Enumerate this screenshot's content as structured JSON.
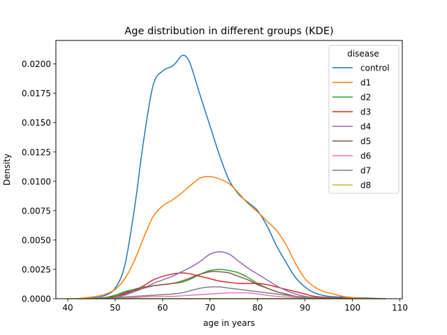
{
  "chart_data": {
    "type": "line",
    "title": "Age distribution in different groups (KDE)",
    "xlabel": "age in years",
    "ylabel": "Density",
    "xlim": [
      37.5,
      110.5
    ],
    "ylim": [
      0,
      0.022
    ],
    "x_ticks": [
      40,
      50,
      60,
      70,
      80,
      90,
      100,
      110
    ],
    "x_tick_labels": [
      "40",
      "50",
      "60",
      "70",
      "80",
      "90",
      "100",
      "110"
    ],
    "y_ticks": [
      0,
      0.0025,
      0.005,
      0.0075,
      0.01,
      0.0125,
      0.015,
      0.0175,
      0.02
    ],
    "y_tick_labels": [
      "0.0000",
      "0.0025",
      "0.0050",
      "0.0075",
      "0.0100",
      "0.0125",
      "0.0150",
      "0.0175",
      "0.0200"
    ],
    "grid": false,
    "legend": {
      "title": "disease",
      "placement": "top-right"
    },
    "series": [
      {
        "name": "control",
        "color": "#1f77b4",
        "points": [
          [
            44,
            0
          ],
          [
            46,
            0.0001
          ],
          [
            48,
            0.0003
          ],
          [
            50,
            0.0009
          ],
          [
            52,
            0.0028
          ],
          [
            54,
            0.0075
          ],
          [
            56,
            0.0135
          ],
          [
            58,
            0.0182
          ],
          [
            60,
            0.0194
          ],
          [
            62,
            0.0198
          ],
          [
            63,
            0.0202
          ],
          [
            64,
            0.0207
          ],
          [
            65,
            0.0206
          ],
          [
            66,
            0.0198
          ],
          [
            68,
            0.0172
          ],
          [
            70,
            0.0147
          ],
          [
            72,
            0.0122
          ],
          [
            74,
            0.0101
          ],
          [
            76,
            0.0089
          ],
          [
            78,
            0.0082
          ],
          [
            80,
            0.0075
          ],
          [
            82,
            0.0062
          ],
          [
            84,
            0.0045
          ],
          [
            86,
            0.0031
          ],
          [
            88,
            0.0018
          ],
          [
            90,
            0.001
          ],
          [
            92,
            0.0005
          ],
          [
            95,
            0.0002
          ],
          [
            100,
            0.0001
          ],
          [
            107,
            0
          ]
        ]
      },
      {
        "name": "d1",
        "color": "#ff7f0e",
        "points": [
          [
            42,
            0
          ],
          [
            44,
            0.0001
          ],
          [
            46,
            0.0002
          ],
          [
            48,
            0.0004
          ],
          [
            50,
            0.0008
          ],
          [
            52,
            0.0017
          ],
          [
            54,
            0.0032
          ],
          [
            56,
            0.0052
          ],
          [
            58,
            0.007
          ],
          [
            60,
            0.0079
          ],
          [
            62,
            0.0084
          ],
          [
            64,
            0.009
          ],
          [
            66,
            0.0097
          ],
          [
            68,
            0.0103
          ],
          [
            70,
            0.0104
          ],
          [
            72,
            0.0102
          ],
          [
            74,
            0.0098
          ],
          [
            76,
            0.009
          ],
          [
            78,
            0.0081
          ],
          [
            80,
            0.0074
          ],
          [
            82,
            0.0066
          ],
          [
            84,
            0.0058
          ],
          [
            86,
            0.0046
          ],
          [
            88,
            0.003
          ],
          [
            90,
            0.0017
          ],
          [
            92,
            0.001
          ],
          [
            94,
            0.0006
          ],
          [
            96,
            0.0004
          ],
          [
            98,
            0.0002
          ],
          [
            100,
            0.0001
          ],
          [
            103,
            0
          ]
        ]
      },
      {
        "name": "d2",
        "color": "#2ca02c",
        "points": [
          [
            46,
            0
          ],
          [
            48,
            0.0001
          ],
          [
            50,
            0.0003
          ],
          [
            52,
            0.0006
          ],
          [
            54,
            0.0008
          ],
          [
            56,
            0.001
          ],
          [
            58,
            0.0011
          ],
          [
            60,
            0.0012
          ],
          [
            62,
            0.0013
          ],
          [
            64,
            0.0014
          ],
          [
            66,
            0.0017
          ],
          [
            68,
            0.0021
          ],
          [
            70,
            0.0024
          ],
          [
            72,
            0.0025
          ],
          [
            74,
            0.0024
          ],
          [
            76,
            0.0022
          ],
          [
            78,
            0.0018
          ],
          [
            80,
            0.0013
          ],
          [
            82,
            0.0009
          ],
          [
            84,
            0.0006
          ],
          [
            86,
            0.0004
          ],
          [
            88,
            0.0002
          ],
          [
            90,
            0.0001
          ],
          [
            95,
            0
          ]
        ]
      },
      {
        "name": "d3",
        "color": "#d62728",
        "points": [
          [
            46,
            0
          ],
          [
            48,
            0.0001
          ],
          [
            50,
            0.0002
          ],
          [
            52,
            0.0004
          ],
          [
            54,
            0.0007
          ],
          [
            56,
            0.0011
          ],
          [
            58,
            0.0016
          ],
          [
            60,
            0.0019
          ],
          [
            62,
            0.0021
          ],
          [
            64,
            0.0022
          ],
          [
            66,
            0.0021
          ],
          [
            68,
            0.0019
          ],
          [
            70,
            0.0017
          ],
          [
            72,
            0.0015
          ],
          [
            74,
            0.0014
          ],
          [
            76,
            0.0013
          ],
          [
            78,
            0.0013
          ],
          [
            80,
            0.0013
          ],
          [
            82,
            0.0012
          ],
          [
            84,
            0.001
          ],
          [
            86,
            0.0008
          ],
          [
            88,
            0.0006
          ],
          [
            90,
            0.0004
          ],
          [
            92,
            0.0002
          ],
          [
            95,
            0.0001
          ],
          [
            100,
            0
          ]
        ]
      },
      {
        "name": "d4",
        "color": "#9467bd",
        "points": [
          [
            48,
            0
          ],
          [
            50,
            0.0001
          ],
          [
            52,
            0.0003
          ],
          [
            54,
            0.0006
          ],
          [
            56,
            0.0009
          ],
          [
            58,
            0.0013
          ],
          [
            60,
            0.0016
          ],
          [
            62,
            0.0019
          ],
          [
            64,
            0.0023
          ],
          [
            66,
            0.0027
          ],
          [
            68,
            0.0032
          ],
          [
            70,
            0.0038
          ],
          [
            72,
            0.004
          ],
          [
            74,
            0.0038
          ],
          [
            76,
            0.0032
          ],
          [
            78,
            0.0026
          ],
          [
            80,
            0.0021
          ],
          [
            82,
            0.0016
          ],
          [
            84,
            0.0011
          ],
          [
            86,
            0.0007
          ],
          [
            88,
            0.0004
          ],
          [
            90,
            0.0002
          ],
          [
            92,
            0.0001
          ],
          [
            95,
            0
          ]
        ]
      },
      {
        "name": "d5",
        "color": "#8c564b",
        "points": [
          [
            46,
            0
          ],
          [
            48,
            0.0001
          ],
          [
            50,
            0.0002
          ],
          [
            52,
            0.0005
          ],
          [
            54,
            0.0007
          ],
          [
            56,
            0.0009
          ],
          [
            58,
            0.0011
          ],
          [
            60,
            0.0012
          ],
          [
            62,
            0.0013
          ],
          [
            64,
            0.0015
          ],
          [
            66,
            0.0018
          ],
          [
            68,
            0.0021
          ],
          [
            70,
            0.0023
          ],
          [
            72,
            0.0023
          ],
          [
            74,
            0.0022
          ],
          [
            76,
            0.0019
          ],
          [
            78,
            0.0016
          ],
          [
            80,
            0.0012
          ],
          [
            82,
            0.0009
          ],
          [
            84,
            0.0006
          ],
          [
            86,
            0.0004
          ],
          [
            88,
            0.0002
          ],
          [
            90,
            0.0001
          ],
          [
            94,
            0
          ]
        ]
      },
      {
        "name": "d6",
        "color": "#e377c2",
        "points": [
          [
            50,
            0
          ],
          [
            54,
            0.0001
          ],
          [
            58,
            0.0002
          ],
          [
            62,
            0.0002
          ],
          [
            66,
            0.0003
          ],
          [
            70,
            0.0004
          ],
          [
            74,
            0.0005
          ],
          [
            76,
            0.0005
          ],
          [
            78,
            0.0005
          ],
          [
            80,
            0.0004
          ],
          [
            84,
            0.0002
          ],
          [
            88,
            0.0001
          ],
          [
            92,
            0
          ]
        ]
      },
      {
        "name": "d7",
        "color": "#7f7f7f",
        "points": [
          [
            46,
            0
          ],
          [
            50,
            0.0001
          ],
          [
            54,
            0.0002
          ],
          [
            58,
            0.0003
          ],
          [
            62,
            0.0004
          ],
          [
            64,
            0.0005
          ],
          [
            66,
            0.0007
          ],
          [
            68,
            0.0009
          ],
          [
            70,
            0.001
          ],
          [
            72,
            0.001
          ],
          [
            74,
            0.0009
          ],
          [
            76,
            0.0008
          ],
          [
            80,
            0.0006
          ],
          [
            84,
            0.0004
          ],
          [
            88,
            0.0002
          ],
          [
            92,
            0.0001
          ],
          [
            97,
            0
          ]
        ]
      },
      {
        "name": "d8",
        "color": "#bcbd22",
        "points": [
          [
            40,
            0
          ],
          [
            107,
            0
          ]
        ]
      }
    ]
  }
}
